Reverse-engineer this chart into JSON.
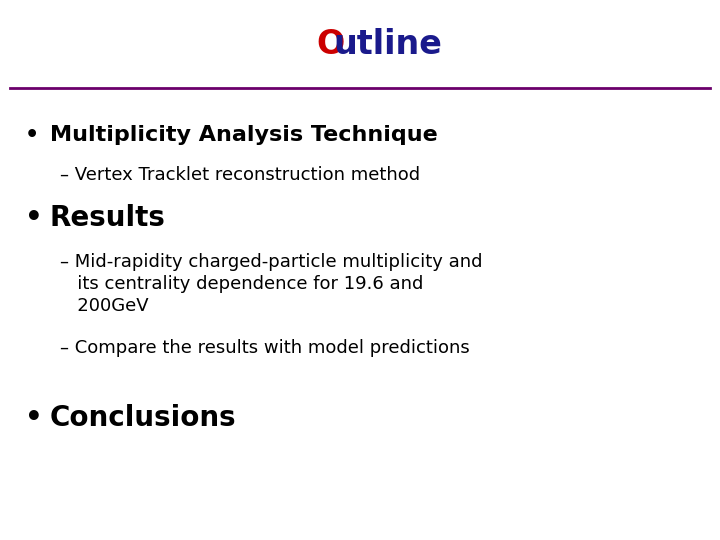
{
  "title_O_color": "#cc0000",
  "title_rest_color": "#1a1a8c",
  "title_text_O": "O",
  "title_text_rest": "utline",
  "line_color": "#6b006b",
  "bg_color": "#ffffff",
  "bullet1_bold": "Multiplicity Analysis Technique",
  "bullet1_sub": "– Vertex Tracklet reconstruction method",
  "bullet2_bold": "Results",
  "bullet2_sub1a": "– Mid-rapidity charged-particle multiplicity and",
  "bullet2_sub1b": "   its centrality dependence for 19.6 and",
  "bullet2_sub1c": "   200GeV",
  "bullet2_sub2": "– Compare the results with model predictions",
  "bullet3_bold": "Conclusions",
  "bullet_color": "#000000",
  "bullet_symbol": "•"
}
